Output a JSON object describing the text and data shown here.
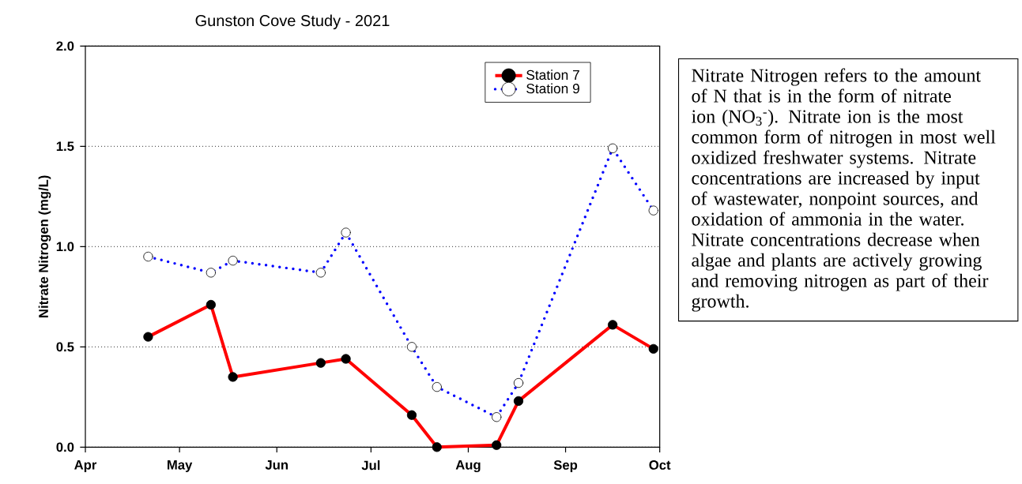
{
  "chart_data": {
    "type": "line",
    "title": "Gunston Cove Study - 2021",
    "ylabel": "Nitrate Nitrogen (mg/L)",
    "x": [
      "2021-04-21",
      "2021-05-11",
      "2021-05-18",
      "2021-06-15",
      "2021-06-23",
      "2021-07-14",
      "2021-07-22",
      "2021-08-10",
      "2021-08-17",
      "2021-09-16",
      "2021-09-29"
    ],
    "series": [
      {
        "name": "Station 7",
        "color": "#ff0000",
        "line_style": "solid",
        "marker": "circle",
        "values": [
          0.55,
          0.71,
          0.35,
          0.42,
          0.44,
          0.16,
          0.0,
          0.01,
          0.23,
          0.61,
          0.49
        ]
      },
      {
        "name": "Station 9",
        "color": "#0000ff",
        "line_style": "dotted",
        "marker": "circle",
        "values": [
          0.95,
          0.87,
          0.93,
          0.87,
          1.07,
          0.5,
          0.3,
          0.15,
          0.32,
          1.49,
          1.18
        ]
      }
    ],
    "xlim": [
      "2021-04-01",
      "2021-10-01"
    ],
    "xticks": [
      {
        "value": "2021-04-01",
        "label": "Apr"
      },
      {
        "value": "2021-05-01",
        "label": "May"
      },
      {
        "value": "2021-06-01",
        "label": "Jun"
      },
      {
        "value": "2021-07-01",
        "label": "Jul"
      },
      {
        "value": "2021-08-01",
        "label": "Aug"
      },
      {
        "value": "2021-09-01",
        "label": "Sep"
      },
      {
        "value": "2021-10-01",
        "label": "Oct"
      }
    ],
    "ylim": [
      0,
      2
    ],
    "yticks": [
      {
        "value": 0,
        "label": "0.0"
      },
      {
        "value": 0.5,
        "label": "0.5"
      },
      {
        "value": 1,
        "label": "1.0"
      },
      {
        "value": 1.5,
        "label": "1.5"
      },
      {
        "value": 2,
        "label": "2.0"
      }
    ],
    "grid": "y",
    "legend": "top right",
    "annotations": [
      "Nitrate Nitrogen refers to the amount of N that is in the form of nitrate ion (NO$_{3}$$^{-}$).  Nitrate ion is the most common form of nitrogen in most well oxidized freshwater systems. Nitrate concentrations are increased by input of wastewater, nonpoint sources, and oxidation of ammonia in the water. Nitrate concentrations decrease when algae and plants are actively growing and removing nitrogen as part of their growth."
    ]
  }
}
